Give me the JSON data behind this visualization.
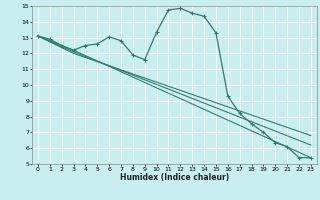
{
  "xlabel": "Humidex (Indice chaleur)",
  "ylabel": "",
  "bg_color": "#c8eef0",
  "grid_color": "#ffffff",
  "grid_minor_color": "#ddf5f5",
  "line_color": "#2e7d6e",
  "xlim": [
    -0.5,
    23.5
  ],
  "ylim": [
    5,
    15
  ],
  "x_ticks": [
    0,
    1,
    2,
    3,
    4,
    5,
    6,
    7,
    8,
    9,
    10,
    11,
    12,
    13,
    14,
    15,
    16,
    17,
    18,
    19,
    20,
    21,
    22,
    23
  ],
  "y_ticks": [
    5,
    6,
    7,
    8,
    9,
    10,
    11,
    12,
    13,
    14,
    15
  ],
  "line1_x": [
    0,
    1,
    2,
    3,
    4,
    5,
    6,
    7,
    8,
    9,
    10,
    11,
    12,
    13,
    14,
    15,
    16,
    17,
    18,
    19,
    20,
    21,
    22,
    23
  ],
  "line1_y": [
    13.1,
    12.9,
    12.5,
    12.2,
    12.5,
    12.6,
    13.05,
    12.8,
    11.9,
    11.6,
    13.35,
    14.75,
    14.85,
    14.55,
    14.35,
    13.3,
    9.3,
    8.2,
    7.55,
    7.0,
    6.35,
    6.1,
    5.4,
    5.4
  ],
  "line2_x": [
    0,
    3,
    23
  ],
  "line2_y": [
    13.1,
    12.2,
    5.4
  ],
  "line3_x": [
    0,
    3,
    23
  ],
  "line3_y": [
    13.1,
    12.1,
    6.2
  ],
  "line4_x": [
    0,
    3,
    23
  ],
  "line4_y": [
    13.1,
    12.0,
    6.8
  ]
}
